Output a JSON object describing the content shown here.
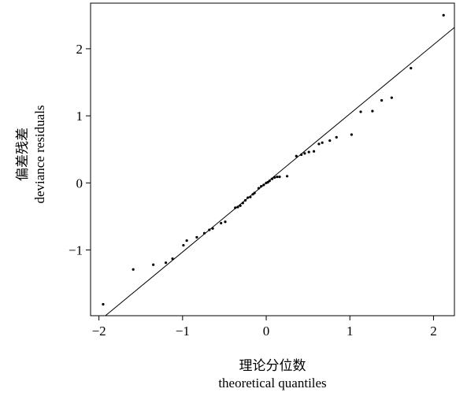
{
  "chart_data": {
    "type": "scatter",
    "xlabel_zh": "理论分位数",
    "xlabel_en": "theoretical quantiles",
    "ylabel_zh": "偏差残差",
    "ylabel_en": "deviance residuals",
    "xlim": [
      -2.1,
      2.25
    ],
    "ylim": [
      -1.98,
      2.68
    ],
    "x_ticks": [
      -2,
      -1,
      0,
      1,
      2
    ],
    "x_tick_labels": [
      "−2",
      "−1",
      "0",
      "1",
      "2"
    ],
    "y_ticks": [
      -1,
      0,
      1,
      2
    ],
    "y_tick_labels": [
      "−1",
      "0",
      "1",
      "2"
    ],
    "reference_line": {
      "slope": 1.03,
      "intercept": 0.0
    },
    "points": [
      {
        "x": -1.95,
        "y": -1.81
      },
      {
        "x": -1.59,
        "y": -1.29
      },
      {
        "x": -1.35,
        "y": -1.22
      },
      {
        "x": -1.2,
        "y": -1.19
      },
      {
        "x": -1.12,
        "y": -1.13
      },
      {
        "x": -0.99,
        "y": -0.93
      },
      {
        "x": -0.95,
        "y": -0.86
      },
      {
        "x": -0.83,
        "y": -0.81
      },
      {
        "x": -0.74,
        "y": -0.75
      },
      {
        "x": -0.68,
        "y": -0.7
      },
      {
        "x": -0.64,
        "y": -0.68
      },
      {
        "x": -0.54,
        "y": -0.6
      },
      {
        "x": -0.49,
        "y": -0.58
      },
      {
        "x": -0.37,
        "y": -0.37
      },
      {
        "x": -0.34,
        "y": -0.36
      },
      {
        "x": -0.31,
        "y": -0.34
      },
      {
        "x": -0.28,
        "y": -0.3
      },
      {
        "x": -0.25,
        "y": -0.26
      },
      {
        "x": -0.22,
        "y": -0.22
      },
      {
        "x": -0.19,
        "y": -0.21
      },
      {
        "x": -0.16,
        "y": -0.17
      },
      {
        "x": -0.14,
        "y": -0.15
      },
      {
        "x": -0.09,
        "y": -0.08
      },
      {
        "x": -0.06,
        "y": -0.05
      },
      {
        "x": -0.03,
        "y": -0.03
      },
      {
        "x": 0.0,
        "y": 0.0
      },
      {
        "x": 0.02,
        "y": 0.01
      },
      {
        "x": 0.04,
        "y": 0.03
      },
      {
        "x": 0.07,
        "y": 0.06
      },
      {
        "x": 0.1,
        "y": 0.08
      },
      {
        "x": 0.13,
        "y": 0.09
      },
      {
        "x": 0.16,
        "y": 0.09
      },
      {
        "x": 0.25,
        "y": 0.1
      },
      {
        "x": 0.36,
        "y": 0.4
      },
      {
        "x": 0.42,
        "y": 0.42
      },
      {
        "x": 0.46,
        "y": 0.44
      },
      {
        "x": 0.51,
        "y": 0.46
      },
      {
        "x": 0.57,
        "y": 0.47
      },
      {
        "x": 0.63,
        "y": 0.58
      },
      {
        "x": 0.67,
        "y": 0.6
      },
      {
        "x": 0.76,
        "y": 0.63
      },
      {
        "x": 0.84,
        "y": 0.68
      },
      {
        "x": 1.02,
        "y": 0.72
      },
      {
        "x": 1.13,
        "y": 1.06
      },
      {
        "x": 1.27,
        "y": 1.07
      },
      {
        "x": 1.38,
        "y": 1.23
      },
      {
        "x": 1.5,
        "y": 1.27
      },
      {
        "x": 1.73,
        "y": 1.71
      },
      {
        "x": 2.12,
        "y": 2.5
      }
    ]
  }
}
